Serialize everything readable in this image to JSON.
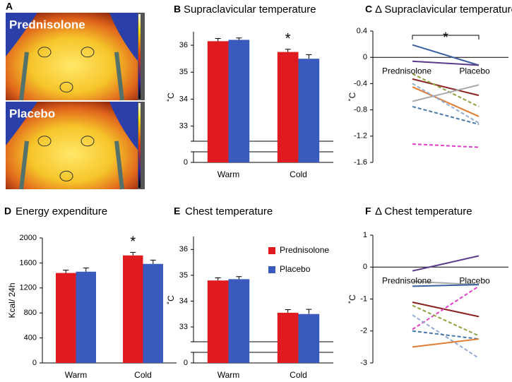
{
  "chart_data": [
    {
      "type": "image",
      "panel": "A",
      "images": [
        {
          "label": "Prednisolone"
        },
        {
          "label": "Placebo"
        }
      ]
    },
    {
      "type": "bar",
      "panel": "B",
      "title": "Supraclavicular temperature",
      "y_label": "˚C",
      "categories": [
        "Warm",
        "Cold"
      ],
      "series": [
        {
          "color": "#e01b1f",
          "values": [
            36.15,
            35.75
          ],
          "errors": [
            0.1,
            0.1
          ]
        },
        {
          "color": "#3a5bbd",
          "values": [
            36.2,
            35.5
          ],
          "errors": [
            0.07,
            0.15
          ]
        }
      ],
      "ylim": [
        0,
        36.5
      ],
      "axis_break": [
        0.2,
        32.7
      ],
      "yticks": [
        0,
        33,
        34,
        35,
        36
      ],
      "annotation": "*",
      "grid": false
    },
    {
      "type": "line",
      "panel": "C",
      "title": "Δ Supraclavicular temperature",
      "y_label": "˚C",
      "categories": [
        "Prednisolone",
        "Placebo"
      ],
      "series": [
        {
          "color": "#3b5fa3",
          "dash": false,
          "values": [
            0.19,
            -0.12
          ]
        },
        {
          "color": "#5b3a8c",
          "dash": false,
          "values": [
            -0.06,
            -0.12
          ]
        },
        {
          "color": "#8b2323",
          "dash": false,
          "values": [
            -0.33,
            -0.58
          ]
        },
        {
          "color": "#8da33e",
          "dash": true,
          "values": [
            -0.25,
            -0.75
          ]
        },
        {
          "color": "#a9a9a9",
          "dash": false,
          "values": [
            -0.67,
            -0.42
          ]
        },
        {
          "color": "#e07b30",
          "dash": false,
          "values": [
            -0.45,
            -0.9
          ]
        },
        {
          "color": "#94abd3",
          "dash": true,
          "values": [
            -0.4,
            -1.0
          ]
        },
        {
          "color": "#4a78ad",
          "dash": true,
          "values": [
            -0.75,
            -1.02
          ]
        },
        {
          "color": "#e040c8",
          "dash": true,
          "values": [
            -1.32,
            -1.37
          ]
        }
      ],
      "ylim": [
        -1.6,
        0.4
      ],
      "yticks": [
        -1.6,
        -1.2,
        -0.8,
        -0.4,
        0,
        0.4
      ],
      "annotation": "*",
      "grid": false
    },
    {
      "type": "bar",
      "panel": "D",
      "title": "Energy expenditure",
      "y_label": "Kcal/ 24h",
      "categories": [
        "Warm",
        "Cold"
      ],
      "series": [
        {
          "color": "#e01b1f",
          "values": [
            1440,
            1720
          ],
          "errors": [
            45,
            50
          ]
        },
        {
          "color": "#3a5bbd",
          "values": [
            1460,
            1585
          ],
          "errors": [
            60,
            60
          ]
        }
      ],
      "ylim": [
        0,
        2000
      ],
      "yticks": [
        0,
        400,
        800,
        1200,
        1600,
        2000
      ],
      "annotation": "*",
      "grid": false
    },
    {
      "type": "bar",
      "panel": "E",
      "title": "Chest temperature",
      "y_label": "˚C",
      "categories": [
        "Warm",
        "Cold"
      ],
      "series": [
        {
          "name": "Prednisolone",
          "color": "#e01b1f",
          "values": [
            34.8,
            33.55
          ],
          "errors": [
            0.1,
            0.12
          ]
        },
        {
          "name": "Placebo",
          "color": "#3a5bbd",
          "values": [
            34.85,
            33.5
          ],
          "errors": [
            0.1,
            0.18
          ]
        }
      ],
      "ylim": [
        0,
        36.5
      ],
      "axis_break": [
        0.2,
        32.7
      ],
      "yticks": [
        0,
        33,
        34,
        35,
        36
      ],
      "legend": true,
      "grid": false
    },
    {
      "type": "line",
      "panel": "F",
      "title": "Δ Chest temperature",
      "y_label": "˚C",
      "categories": [
        "Prednisolone",
        "Placebo"
      ],
      "series": [
        {
          "color": "#5b3a8c",
          "dash": false,
          "values": [
            -0.12,
            0.35
          ]
        },
        {
          "color": "#a9a9a9",
          "dash": false,
          "values": [
            -0.45,
            -0.55
          ]
        },
        {
          "color": "#3b5fa3",
          "dash": false,
          "values": [
            -0.6,
            -0.55
          ]
        },
        {
          "color": "#8b2323",
          "dash": false,
          "values": [
            -1.1,
            -1.55
          ]
        },
        {
          "color": "#e040c8",
          "dash": true,
          "values": [
            -1.95,
            -0.6
          ]
        },
        {
          "color": "#8da33e",
          "dash": true,
          "values": [
            -1.2,
            -2.15
          ]
        },
        {
          "color": "#94abd3",
          "dash": true,
          "values": [
            -1.5,
            -2.85
          ]
        },
        {
          "color": "#4a78ad",
          "dash": true,
          "values": [
            -2.0,
            -2.25
          ]
        },
        {
          "color": "#e07b30",
          "dash": false,
          "values": [
            -2.5,
            -2.25
          ]
        }
      ],
      "ylim": [
        -3,
        1
      ],
      "yticks": [
        -3,
        -2,
        -1,
        0,
        1
      ],
      "grid": false
    }
  ]
}
